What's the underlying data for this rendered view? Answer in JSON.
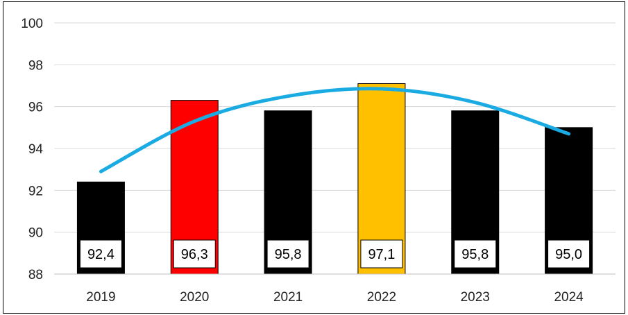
{
  "chart_data": {
    "type": "bar",
    "title": "",
    "xlabel": "",
    "ylabel": "",
    "categories": [
      "2019",
      "2020",
      "2021",
      "2022",
      "2023",
      "2024"
    ],
    "values": [
      92.4,
      96.3,
      95.8,
      97.1,
      95.8,
      95.0
    ],
    "data_labels": [
      "92,4",
      "96,3",
      "95,8",
      "97,1",
      "95,8",
      "95,0"
    ],
    "bar_colors": [
      "#000000",
      "#ff0000",
      "#000000",
      "#ffc000",
      "#000000",
      "#000000"
    ],
    "ylim": [
      88,
      100
    ],
    "yticks": [
      88,
      90,
      92,
      94,
      96,
      98,
      100
    ],
    "grid": true,
    "legend": "none",
    "trendline": {
      "type": "polynomial",
      "color": "#1aabe3",
      "values": [
        92.9,
        95.3,
        96.5,
        96.85,
        96.2,
        94.7
      ]
    }
  }
}
